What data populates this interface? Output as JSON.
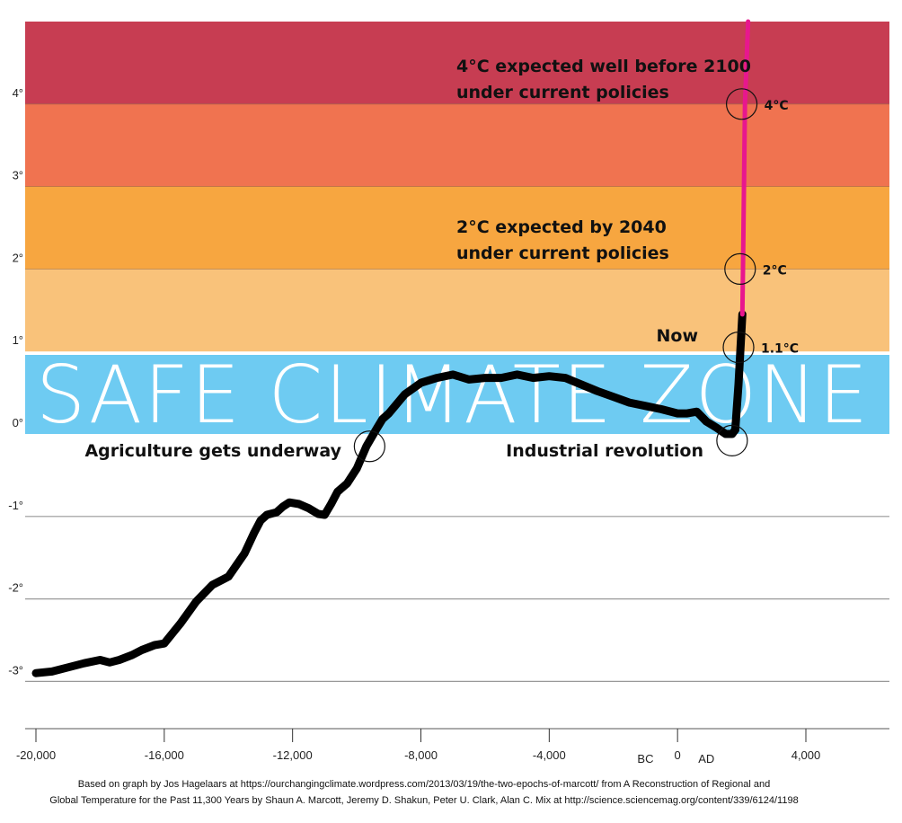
{
  "chart_data": {
    "type": "line",
    "title": "",
    "xlabel": "",
    "ylabel": "",
    "xlim": [
      -20300,
      6700
    ],
    "ylim": [
      -3.7,
      5.0
    ],
    "x_ticks": [
      {
        "value": -20000,
        "label": "-20,000"
      },
      {
        "value": -16000,
        "label": "-16,000"
      },
      {
        "value": -12000,
        "label": "-12,000"
      },
      {
        "value": -8000,
        "label": "-8,000"
      },
      {
        "value": -4000,
        "label": "-4,000"
      },
      {
        "value": 0,
        "label": "0"
      },
      {
        "value": 4000,
        "label": "4,000"
      }
    ],
    "era_labels": {
      "bc": "BC",
      "ad": "AD"
    },
    "y_ticks": [
      {
        "value": 4,
        "label": "4°"
      },
      {
        "value": 3,
        "label": "3°"
      },
      {
        "value": 2,
        "label": "2°"
      },
      {
        "value": 1,
        "label": "1°"
      },
      {
        "value": 0,
        "label": "0°"
      },
      {
        "value": -1,
        "label": "-1°"
      },
      {
        "value": -2,
        "label": "-2°"
      },
      {
        "value": -3,
        "label": "-3°"
      }
    ],
    "bands": [
      {
        "name": "above-4",
        "from": 4,
        "to": 5.0,
        "color": "#c73d52"
      },
      {
        "name": "3-to-4",
        "from": 3,
        "to": 4,
        "color": "#f07350"
      },
      {
        "name": "2-to-3",
        "from": 2,
        "to": 3,
        "color": "#f7a640"
      },
      {
        "name": "1-to-2",
        "from": 1,
        "to": 2,
        "color": "#f9c27a"
      },
      {
        "name": "safe-zone",
        "from": 0,
        "to": 0.97,
        "color": "#6ecbf2",
        "label": "SAFE CLIMATE ZONE"
      }
    ],
    "series": [
      {
        "name": "Historical temperature",
        "color": "#000000",
        "x": [
          -20000,
          -19500,
          -19000,
          -18500,
          -18000,
          -17700,
          -17400,
          -17000,
          -16700,
          -16300,
          -16000,
          -15500,
          -15000,
          -14500,
          -14000,
          -13500,
          -13200,
          -13000,
          -12800,
          -12500,
          -12300,
          -12100,
          -11800,
          -11500,
          -11200,
          -11000,
          -10800,
          -10600,
          -10300,
          -10000,
          -9700,
          -9400,
          -9200,
          -9000,
          -8500,
          -8000,
          -7500,
          -7000,
          -6500,
          -6000,
          -5500,
          -5000,
          -4500,
          -4000,
          -3500,
          -3000,
          -2500,
          -2000,
          -1500,
          -1000,
          -500,
          0,
          300,
          600,
          900,
          1200,
          1500,
          1700,
          1800
        ],
        "y": [
          -2.9,
          -2.88,
          -2.83,
          -2.78,
          -2.74,
          -2.77,
          -2.74,
          -2.68,
          -2.62,
          -2.56,
          -2.54,
          -2.3,
          -2.03,
          -1.83,
          -1.73,
          -1.45,
          -1.2,
          -1.05,
          -0.98,
          -0.95,
          -0.88,
          -0.83,
          -0.85,
          -0.9,
          -0.97,
          -0.98,
          -0.85,
          -0.7,
          -0.6,
          -0.42,
          -0.15,
          0.05,
          0.18,
          0.25,
          0.48,
          0.62,
          0.68,
          0.72,
          0.66,
          0.68,
          0.68,
          0.72,
          0.68,
          0.7,
          0.68,
          0.6,
          0.52,
          0.45,
          0.38,
          0.34,
          0.3,
          0.25,
          0.25,
          0.27,
          0.15,
          0.08,
          0.0,
          0.0,
          0.05
        ]
      },
      {
        "name": "Recent warming",
        "color": "#000000",
        "x": [
          1800,
          1900,
          2020
        ],
        "y": [
          0.05,
          0.6,
          1.45
        ]
      },
      {
        "name": "Projected warming",
        "color": "#e8178e",
        "x": [
          2020,
          2040,
          2100,
          2200
        ],
        "y": [
          1.45,
          2.0,
          4.0,
          5.0
        ]
      }
    ],
    "markers": [
      {
        "name": "agriculture",
        "x": -9600,
        "y": -0.15,
        "label": "Agriculture gets underway"
      },
      {
        "name": "industrial",
        "x": 1700,
        "y": -0.08,
        "label": "Industrial revolution"
      },
      {
        "name": "now",
        "x": 1900,
        "y": 1.05,
        "label": "Now",
        "value_label": "1.1°C"
      },
      {
        "name": "2c",
        "x": 1950,
        "y": 2.0,
        "value_label": "2°C"
      },
      {
        "name": "4c",
        "x": 2000,
        "y": 4.0,
        "value_label": "4°C"
      }
    ],
    "annotations": [
      {
        "name": "4c-expected",
        "lines": [
          "4°C expected well before 2100",
          "under current policies"
        ]
      },
      {
        "name": "2c-expected",
        "lines": [
          "2°C expected by 2040",
          "under current policies"
        ]
      }
    ]
  },
  "credit": {
    "line1": "Based on graph by Jos Hagelaars at https://ourchangingclimate.wordpress.com/2013/03/19/the-two-epochs-of-marcott/ from A Reconstruction of Regional and",
    "line2": "Global Temperature for the Past 11,300 Years by Shaun A. Marcott, Jeremy D. Shakun, Peter U. Clark, Alan C. Mix at http://science.sciencemag.org/content/339/6124/1198"
  }
}
